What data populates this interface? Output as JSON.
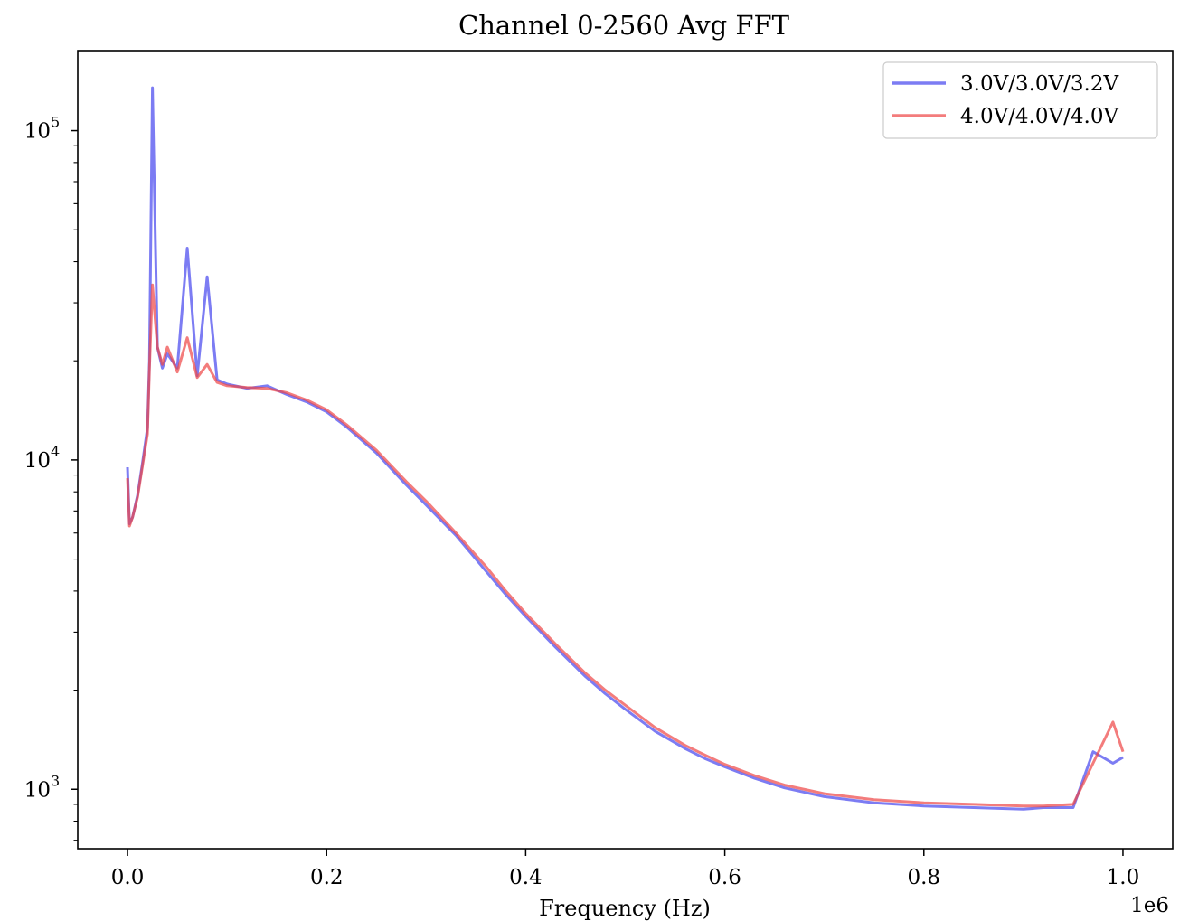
{
  "chart_data": {
    "type": "line",
    "title": "Channel 0-2560 Avg FFT",
    "xlabel": "Frequency (Hz)",
    "ylabel": "",
    "x_offset_text": "1e6",
    "x_scale_factor": 1000000,
    "xlim": [
      -0.05,
      1.05
    ],
    "ylim": [
      660,
      175000
    ],
    "yscale": "log",
    "grid": false,
    "legend_position": "top-right",
    "x_ticks": [
      {
        "value": 0.0,
        "label": "0.0"
      },
      {
        "value": 0.2,
        "label": "0.2"
      },
      {
        "value": 0.4,
        "label": "0.4"
      },
      {
        "value": 0.6,
        "label": "0.6"
      },
      {
        "value": 0.8,
        "label": "0.8"
      },
      {
        "value": 1.0,
        "label": "1.0"
      }
    ],
    "y_ticks": [
      {
        "value": 1000,
        "base": "10",
        "exp": "3"
      },
      {
        "value": 10000,
        "base": "10",
        "exp": "4"
      },
      {
        "value": 100000,
        "base": "10",
        "exp": "5"
      }
    ],
    "x": [
      0.0,
      0.002,
      0.005,
      0.01,
      0.015,
      0.02,
      0.022,
      0.025,
      0.03,
      0.035,
      0.04,
      0.05,
      0.06,
      0.07,
      0.08,
      0.09,
      0.1,
      0.12,
      0.14,
      0.16,
      0.18,
      0.2,
      0.22,
      0.25,
      0.28,
      0.3,
      0.33,
      0.36,
      0.38,
      0.4,
      0.43,
      0.46,
      0.48,
      0.5,
      0.53,
      0.56,
      0.58,
      0.6,
      0.63,
      0.66,
      0.7,
      0.75,
      0.8,
      0.85,
      0.9,
      0.92,
      0.95,
      0.97,
      0.99,
      1.0
    ],
    "series": [
      {
        "name": "3.0V/3.0V/3.2V",
        "color": "#4444ee",
        "values": [
          9500,
          6400,
          6700,
          7800,
          9800,
          12500,
          20000,
          135000,
          22000,
          19000,
          21000,
          19000,
          44000,
          18000,
          36000,
          17500,
          17000,
          16500,
          16800,
          15800,
          15000,
          14000,
          12600,
          10500,
          8400,
          7300,
          5900,
          4600,
          3900,
          3350,
          2700,
          2200,
          1950,
          1750,
          1500,
          1330,
          1240,
          1170,
          1080,
          1010,
          950,
          910,
          890,
          880,
          870,
          880,
          880,
          1300,
          1200,
          1250
        ]
      },
      {
        "name": "4.0V/4.0V/4.0V",
        "color": "#ee4444",
        "values": [
          8800,
          6300,
          6700,
          7700,
          9600,
          12000,
          19000,
          34000,
          22000,
          19500,
          22000,
          18500,
          23500,
          17800,
          19500,
          17200,
          16800,
          16600,
          16500,
          16000,
          15200,
          14200,
          12800,
          10700,
          8600,
          7500,
          6000,
          4750,
          4000,
          3420,
          2760,
          2250,
          2000,
          1800,
          1540,
          1360,
          1270,
          1190,
          1100,
          1030,
          970,
          930,
          910,
          900,
          890,
          890,
          900,
          1200,
          1600,
          1300
        ]
      }
    ]
  }
}
